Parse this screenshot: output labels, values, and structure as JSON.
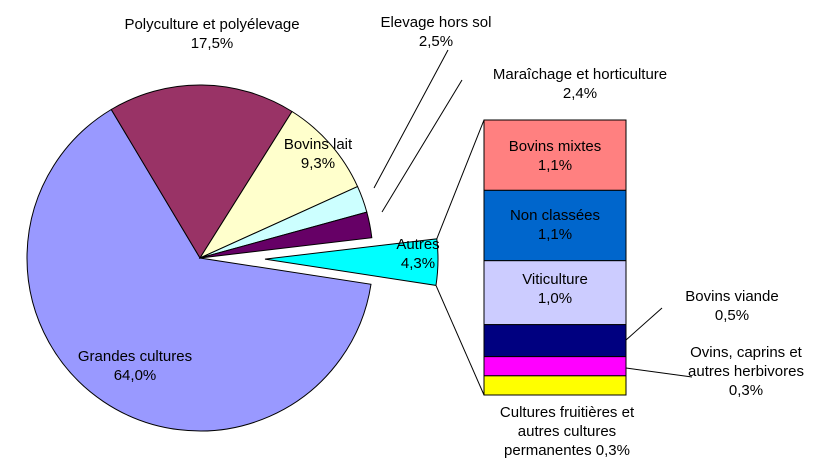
{
  "chart_data": {
    "type": "pie",
    "categories": [
      "Grandes cultures",
      "Polyculture et polyélevage",
      "Bovins lait",
      "Elevage hors sol",
      "Maraîchage et horticulture",
      "Autres"
    ],
    "values": [
      64.0,
      17.5,
      9.3,
      2.5,
      2.4,
      4.3
    ],
    "value_labels": [
      "64,0%",
      "17,5%",
      "9,3%",
      "2,5%",
      "2,4%",
      "4,3%"
    ],
    "colors": [
      "#9999ff",
      "#993366",
      "#ffffcc",
      "#ccffff",
      "#660066",
      "#00ffff"
    ],
    "breakdown": {
      "categories": [
        "Bovins mixtes",
        "Non classées",
        "Viticulture",
        "Bovins viande",
        "Ovins, caprins et autres herbivores",
        "Cultures fruitières et autres cultures permanentes"
      ],
      "values": [
        1.1,
        1.1,
        1.0,
        0.5,
        0.3,
        0.3
      ],
      "value_labels": [
        "1,1%",
        "1,1%",
        "1,0%",
        "0,5%",
        "0,3%",
        "0,3%"
      ],
      "colors": [
        "#ff8080",
        "#0066cc",
        "#ccccff",
        "#000080",
        "#ff00ff",
        "#ffff00"
      ]
    }
  }
}
